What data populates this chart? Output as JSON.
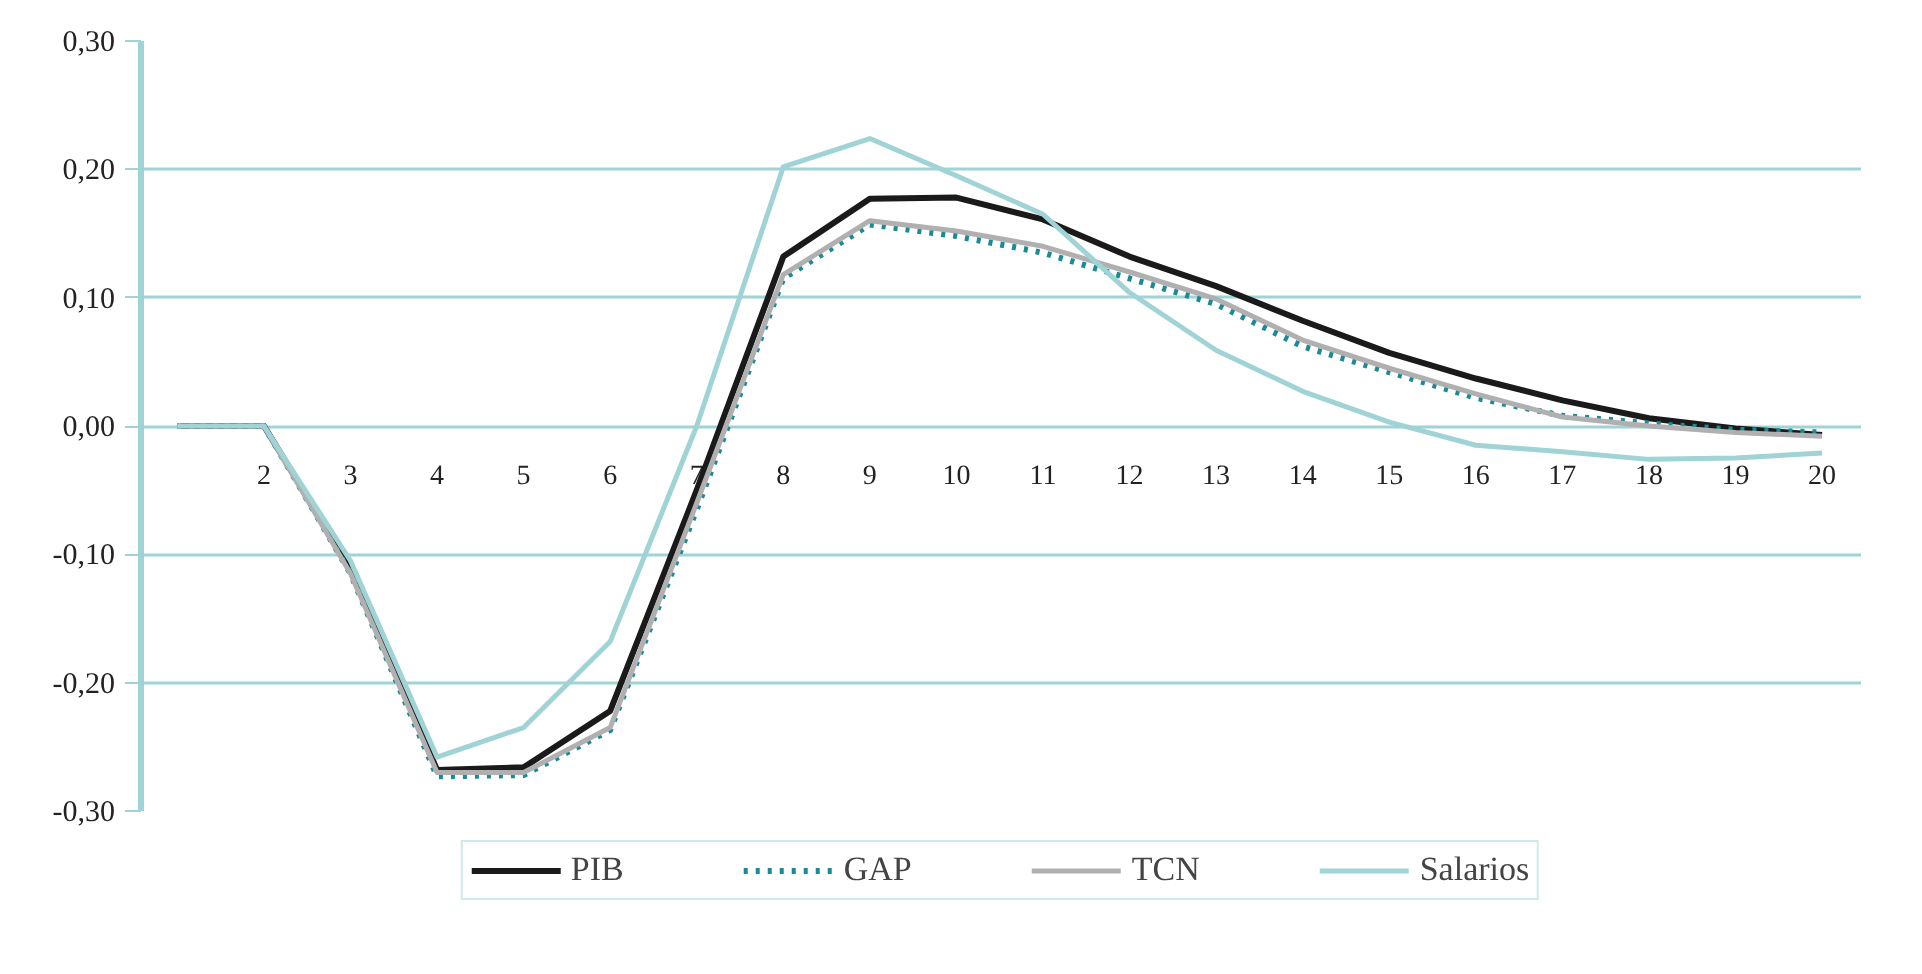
{
  "chart_data": {
    "type": "line",
    "categories": [
      null,
      "2",
      "3",
      "4",
      "5",
      "6",
      "7",
      "8",
      "9",
      "10",
      "11",
      "12",
      "13",
      "14",
      "15",
      "16",
      "17",
      "18",
      "19",
      "20"
    ],
    "series": [
      {
        "name": "PIB",
        "color": "#1a1a1a",
        "values": [
          0,
          0,
          -0.11,
          -0.268,
          -0.266,
          -0.222,
          -0.05,
          0.132,
          0.177,
          0.178,
          0.161,
          0.132,
          0.109,
          0.082,
          0.057,
          0.037,
          0.02,
          0.006,
          -0.002,
          -0.007
        ]
      },
      {
        "name": "GAP",
        "color": "#1a8a96",
        "line_style": "dotted",
        "values": [
          0,
          0,
          -0.115,
          -0.273,
          -0.272,
          -0.237,
          -0.065,
          0.115,
          0.157,
          0.148,
          0.135,
          0.115,
          0.095,
          0.062,
          0.042,
          0.022,
          0.008,
          0.002,
          -0.003,
          -0.005
        ]
      },
      {
        "name": "TCN",
        "color": "#b0b0b0",
        "values": [
          0,
          0,
          -0.115,
          -0.27,
          -0.27,
          -0.235,
          -0.06,
          0.118,
          0.16,
          0.152,
          0.14,
          0.12,
          0.099,
          0.067,
          0.045,
          0.025,
          0.007,
          0,
          -0.005,
          -0.008
        ]
      },
      {
        "name": "Salarios",
        "color": "#9fd3d6",
        "values": [
          0,
          0,
          -0.105,
          -0.258,
          -0.235,
          -0.168,
          0,
          0.202,
          0.224,
          0.195,
          0.165,
          0.104,
          0.059,
          0.027,
          0.003,
          -0.015,
          -0.02,
          -0.026,
          -0.025,
          -0.021
        ]
      }
    ],
    "ylim": [
      -0.3,
      0.3
    ],
    "yticks": [
      {
        "value": -0.3,
        "label": "-0,30"
      },
      {
        "value": -0.2,
        "label": "-0,20"
      },
      {
        "value": -0.1,
        "label": "-0,10"
      },
      {
        "value": 0,
        "label": "0,00"
      },
      {
        "value": 0.1,
        "label": "0,10"
      },
      {
        "value": 0.2,
        "label": "0,20"
      },
      {
        "value": 0.3,
        "label": "0,30"
      }
    ],
    "grid": "y",
    "legend": "bottom",
    "line_style": "solid"
  }
}
